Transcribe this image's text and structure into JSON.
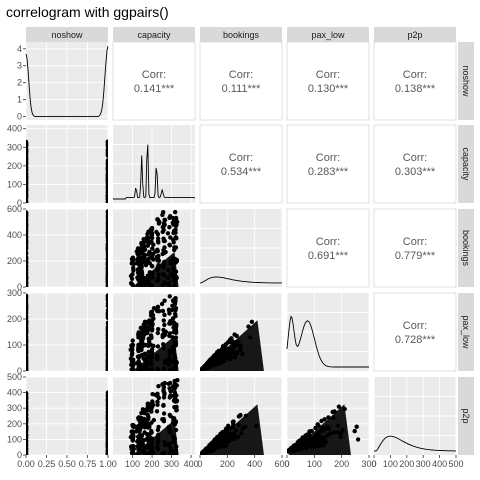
{
  "chart_data": {
    "type": "correlogram",
    "title": "correlogram with ggpairs()",
    "variables": [
      "noshow",
      "capacity",
      "bookings",
      "pax_low",
      "p2p"
    ],
    "correlations": [
      {
        "row": "noshow",
        "col": "capacity",
        "label": "Corr:",
        "value": "0.141***"
      },
      {
        "row": "noshow",
        "col": "bookings",
        "label": "Corr:",
        "value": "0.111***"
      },
      {
        "row": "noshow",
        "col": "pax_low",
        "label": "Corr:",
        "value": "0.130***"
      },
      {
        "row": "noshow",
        "col": "p2p",
        "label": "Corr:",
        "value": "0.138***"
      },
      {
        "row": "capacity",
        "col": "bookings",
        "label": "Corr:",
        "value": "0.534***"
      },
      {
        "row": "capacity",
        "col": "pax_low",
        "label": "Corr:",
        "value": "0.283***"
      },
      {
        "row": "capacity",
        "col": "p2p",
        "label": "Corr:",
        "value": "0.303***"
      },
      {
        "row": "bookings",
        "col": "pax_low",
        "label": "Corr:",
        "value": "0.691***"
      },
      {
        "row": "bookings",
        "col": "p2p",
        "label": "Corr:",
        "value": "0.779***"
      },
      {
        "row": "pax_low",
        "col": "p2p",
        "label": "Corr:",
        "value": "0.728***"
      }
    ],
    "ranges": {
      "noshow": [
        0,
        1
      ],
      "capacity": [
        0,
        420
      ],
      "bookings": [
        0,
        600
      ],
      "pax_low": [
        0,
        300
      ],
      "p2p": [
        0,
        500
      ]
    },
    "x_ticks": {
      "noshow": [
        "0.00",
        "0.25",
        "0.50",
        "0.75",
        "1.00"
      ],
      "capacity": [
        "100",
        "200",
        "300",
        "400"
      ],
      "bookings": [
        "0",
        "200",
        "400",
        "600"
      ],
      "pax_low": [
        "0",
        "100",
        "200",
        "300"
      ],
      "p2p": [
        "0",
        "100",
        "200",
        "300",
        "400",
        "500"
      ]
    },
    "y_ticks": {
      "noshow": [
        "0",
        "1",
        "2",
        "3",
        "4"
      ],
      "capacity": [
        "0",
        "100",
        "200",
        "300",
        "400"
      ],
      "bookings": [
        "0",
        "200",
        "400",
        "600"
      ],
      "pax_low": [
        "0",
        "100",
        "200",
        "300"
      ],
      "p2p": [
        "0",
        "100",
        "200",
        "300",
        "400",
        "500"
      ]
    },
    "y_tick_values": {
      "noshow": [
        0,
        1,
        2,
        3,
        4
      ],
      "capacity": [
        0,
        100,
        200,
        300,
        400
      ],
      "bookings": [
        0,
        200,
        400,
        600
      ],
      "pax_low": [
        0,
        100,
        200,
        300
      ],
      "p2p": [
        0,
        100,
        200,
        300,
        400,
        500
      ]
    },
    "x_tick_values": {
      "noshow": [
        0,
        0.25,
        0.5,
        0.75,
        1.0
      ],
      "capacity": [
        100,
        200,
        300,
        400
      ],
      "bookings": [
        0,
        200,
        400,
        600
      ],
      "pax_low": [
        0,
        100,
        200,
        300
      ],
      "p2p": [
        0,
        100,
        200,
        300,
        400,
        500
      ]
    },
    "density_noshow_ylim": [
      -0.2,
      4.4
    ],
    "grid": true,
    "colors": {
      "panel_bg": "#ebebeb",
      "grid": "#ffffff",
      "strip_bg": "#d9d9d9",
      "points": "#000000",
      "corr_text": "#595959"
    }
  }
}
